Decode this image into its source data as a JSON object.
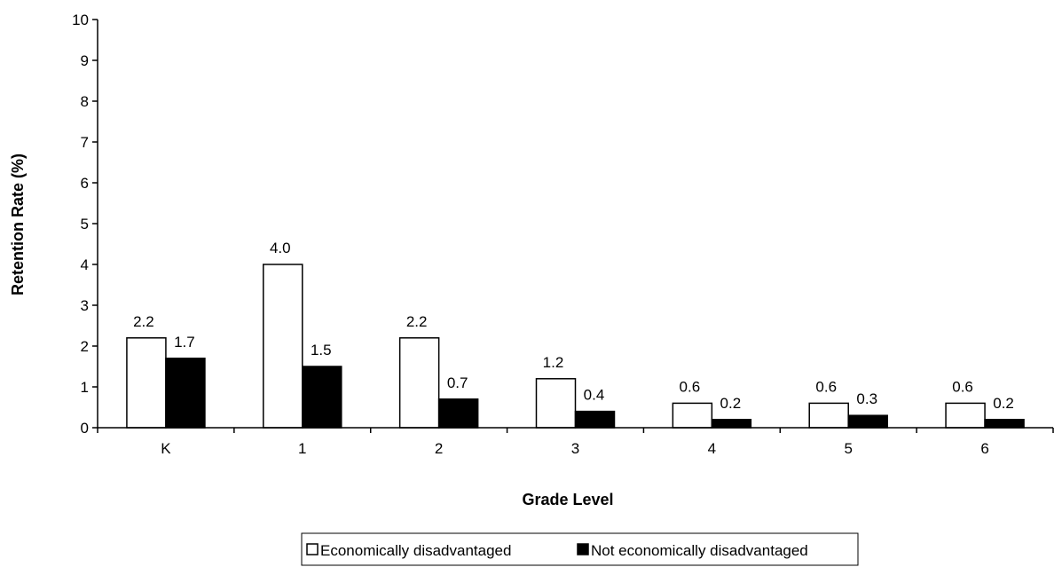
{
  "chart_data": {
    "type": "bar",
    "title": "",
    "xlabel": "Grade Level",
    "ylabel": "Retention Rate (%)",
    "ylim": [
      0,
      10
    ],
    "yticks": [
      "0",
      "1",
      "2",
      "3",
      "4",
      "5",
      "6",
      "7",
      "8",
      "9",
      "10"
    ],
    "categories": [
      "K",
      "1",
      "2",
      "3",
      "4",
      "5",
      "6"
    ],
    "series": [
      {
        "name": "Economically disadvantaged",
        "values": [
          2.2,
          4.0,
          2.2,
          1.2,
          0.6,
          0.6,
          0.6
        ],
        "labels": [
          "2.2",
          "4.0",
          "2.2",
          "1.2",
          "0.6",
          "0.6",
          "0.6"
        ],
        "color": "#ffffff",
        "stroke": "#000000"
      },
      {
        "name": "Not economically disadvantaged",
        "values": [
          1.7,
          1.5,
          0.7,
          0.4,
          0.2,
          0.3,
          0.2
        ],
        "labels": [
          "1.7",
          "1.5",
          "0.7",
          "0.4",
          "0.2",
          "0.3",
          "0.2"
        ],
        "color": "#000000",
        "stroke": "#000000"
      }
    ],
    "grid": false,
    "legend_position": "bottom"
  }
}
